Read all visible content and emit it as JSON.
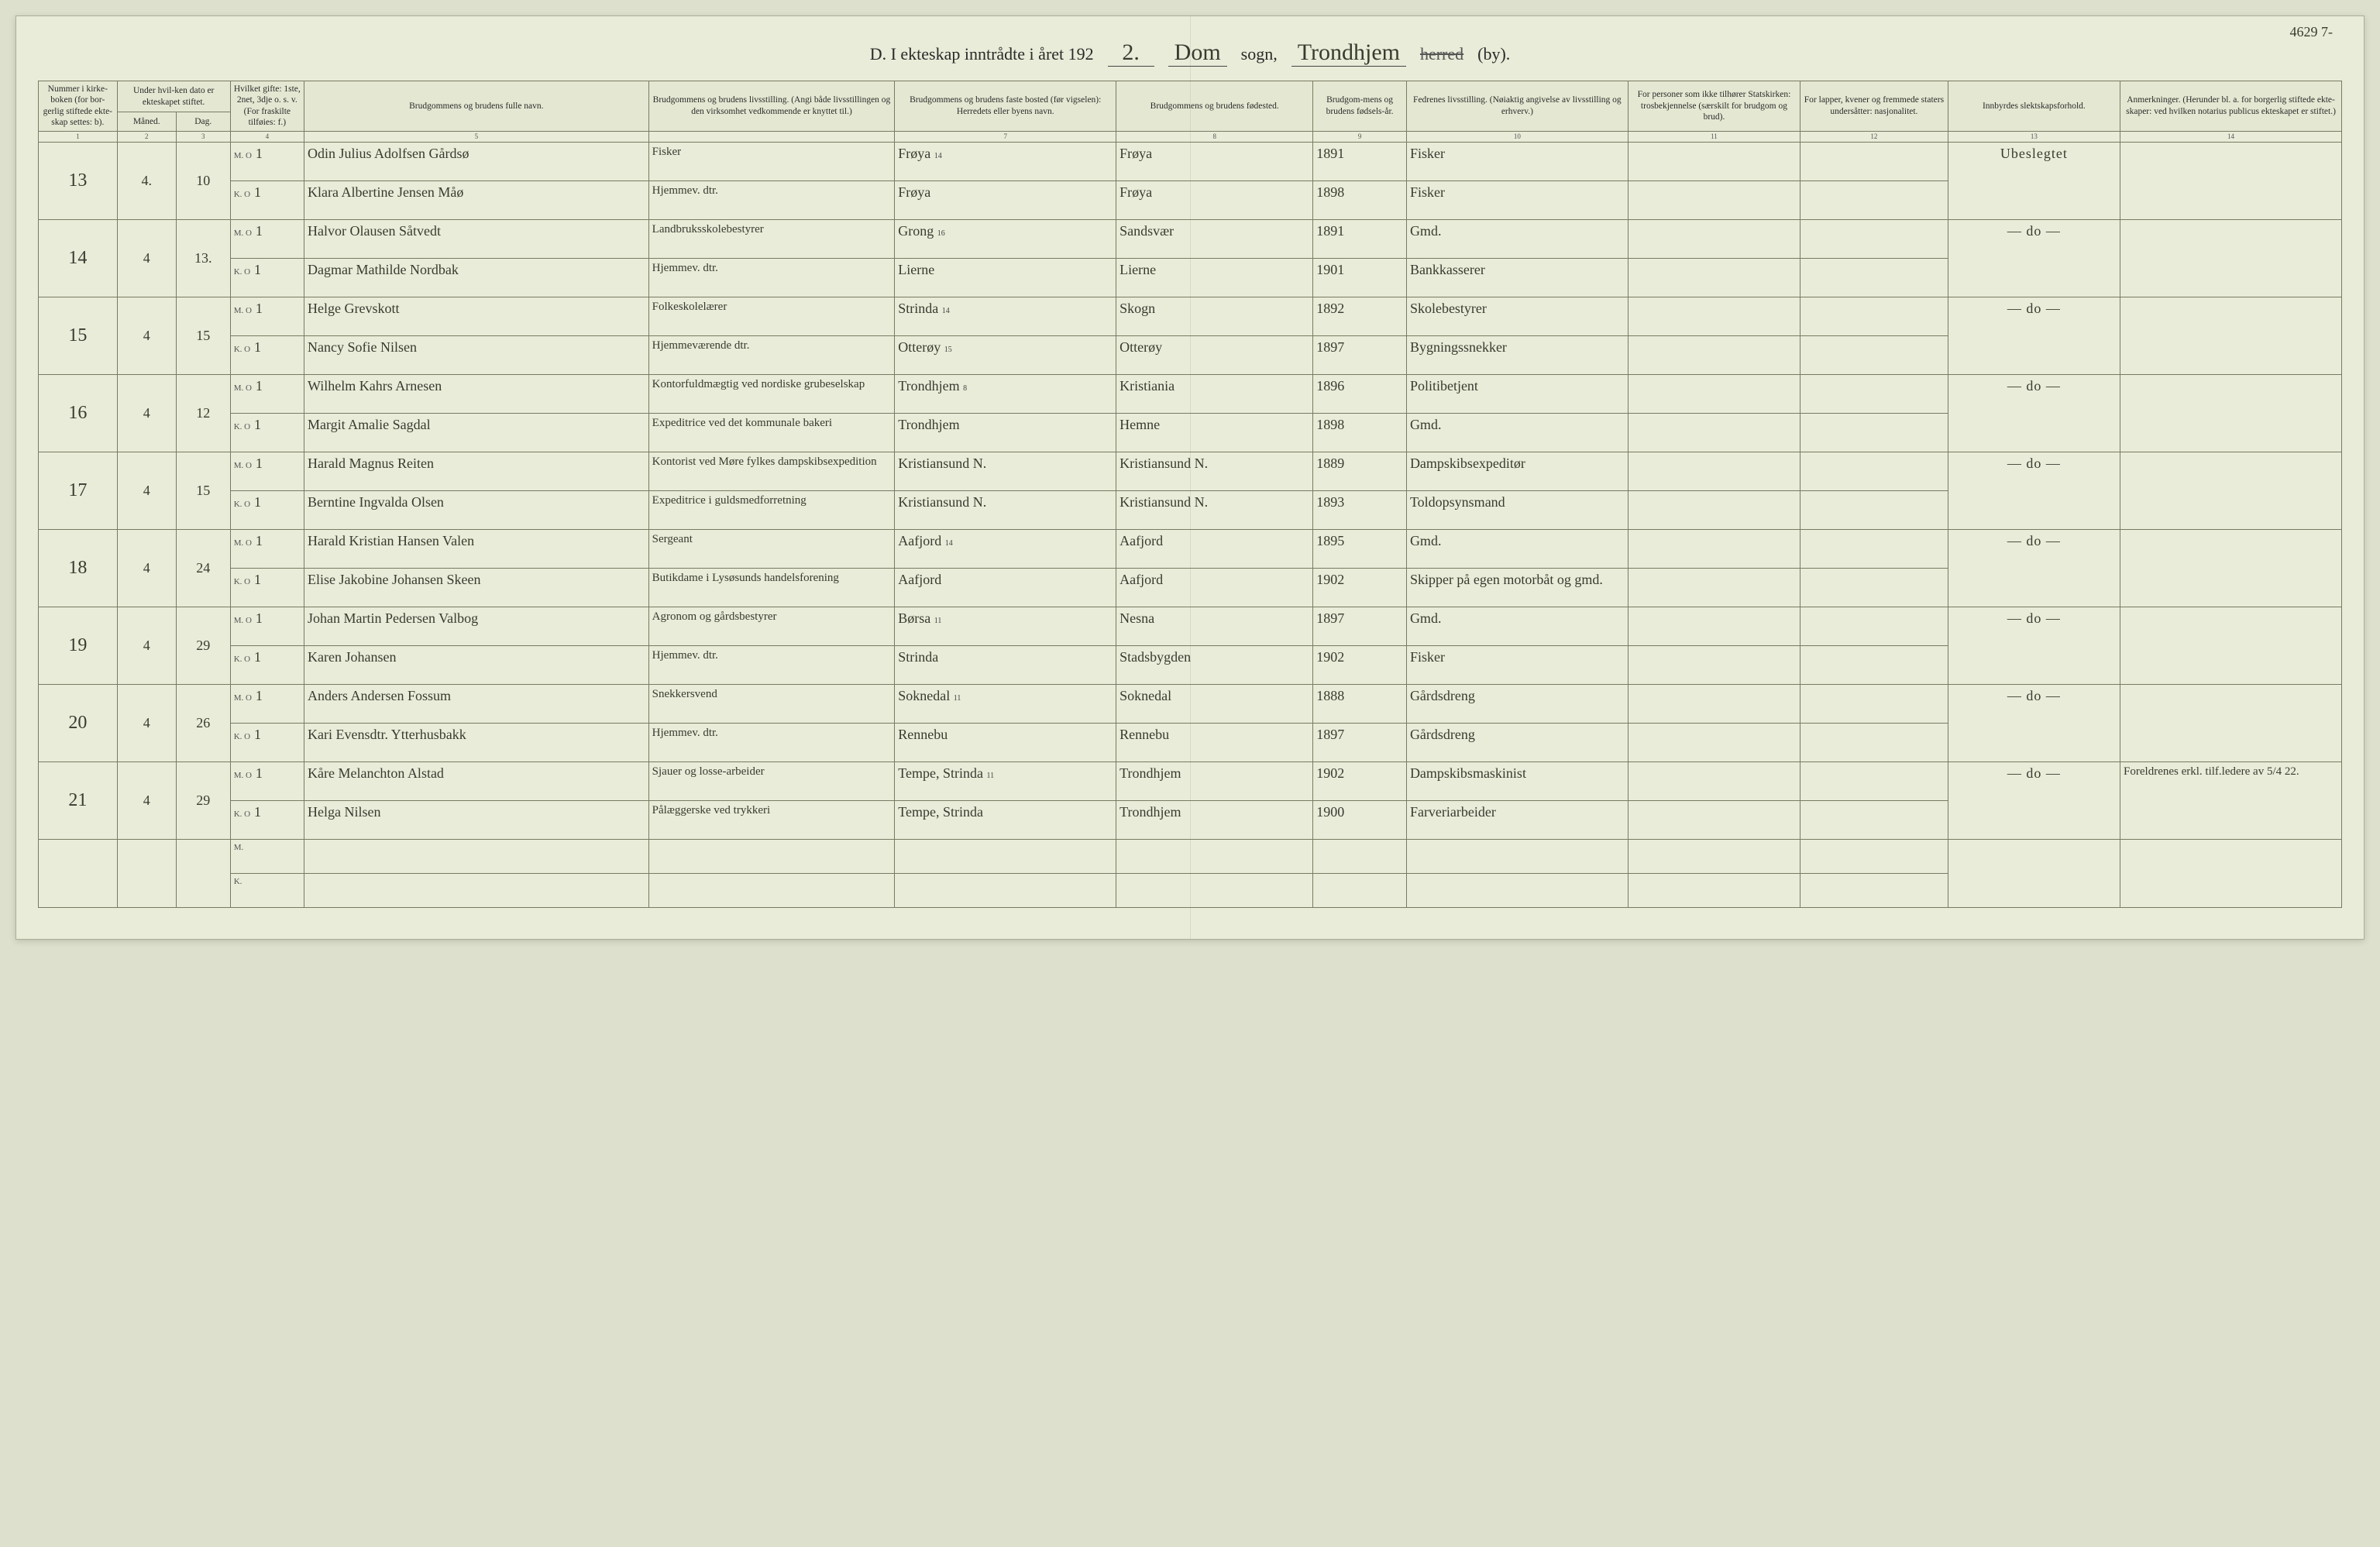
{
  "colors": {
    "page_bg": "#e8ecd8",
    "body_bg": "#dce0cc",
    "border": "#7a7a62",
    "ink": "#3a3a30"
  },
  "topright": "4629 7-",
  "header": {
    "prefix": "D.   I ekteskap inntrådte i året 192",
    "year_suffix": "2.",
    "sogn_value": "Dom",
    "sogn_label": "sogn,",
    "herred_value": "Trondhjem",
    "herred_struck": "herred",
    "by_label": "(by)."
  },
  "columns": {
    "c1": "Nummer i kirke-boken (for bor-gerlig stiftede ekte-skap settes: b).",
    "c2_group": "Under hvil-ken dato er ekteskapet stiftet.",
    "c2a": "Måned.",
    "c2b": "Dag.",
    "c3": "Hvilket gifte: 1ste, 2net, 3dje o. s. v. (For fraskilte tilføies: f.)",
    "c4": "Brudgommens og brudens fulle navn.",
    "c5": "Brudgommens og brudens livsstilling. (Angi både livsstillingen og den virksomhet vedkommende er knyttet til.)",
    "c6": "Brudgommens og brudens faste bosted (før vigselen): Herredets eller byens navn.",
    "c7": "Brudgommens og brudens fødested.",
    "c8": "Brudgom-mens og brudens fødsels-år.",
    "c9": "Fedrenes livsstilling. (Nøiaktig angivelse av livsstilling og erhverv.)",
    "c10": "For personer som ikke tilhører Statskirken: trosbekjennelse (særskilt for brudgom og brud).",
    "c11": "For lapper, kvener og fremmede staters undersåtter: nasjonalitet.",
    "c12": "Innbyrdes slektskapsforhold.",
    "c13": "Anmerkninger. (Herunder bl. a. for borgerlig stiftede ekte-skaper: ved hvilken notarius publicus ekteskapet er stiftet.)"
  },
  "colnums": [
    "1",
    "2",
    "3",
    "4",
    "5",
    "",
    "7",
    "8",
    "9",
    "10",
    "11",
    "12",
    "13",
    "14"
  ],
  "rows": [
    {
      "num": "13",
      "maaned": "4.",
      "dag": "10",
      "m": {
        "gifte": "1",
        "navn": "Odin Julius Adolfsen Gårdsø",
        "stilling": "Fisker",
        "bosted": "Frøya",
        "note": "14",
        "fodested": "Frøya",
        "aar": "1891",
        "fedre": "Fisker"
      },
      "k": {
        "gifte": "1",
        "navn": "Klara Albertine Jensen Måø",
        "stilling": "Hjemmev. dtr.",
        "bosted": "Frøya",
        "fodested": "Frøya",
        "aar": "1898",
        "fedre": "Fisker"
      },
      "slekt": "Ubeslegtet",
      "anm": ""
    },
    {
      "num": "14",
      "maaned": "4",
      "dag": "13.",
      "m": {
        "gifte": "1",
        "navn": "Halvor Olausen Såtvedt",
        "stilling": "Landbruksskolebestyrer",
        "bosted": "Grong",
        "note": "16",
        "fodested": "Sandsvær",
        "aar": "1891",
        "fedre": "Gmd."
      },
      "k": {
        "gifte": "1",
        "navn": "Dagmar Mathilde Nordbak",
        "stilling": "Hjemmev. dtr.",
        "bosted": "Lierne",
        "fodested": "Lierne",
        "aar": "1901",
        "fedre": "Bankkasserer"
      },
      "slekt": "— do —",
      "anm": ""
    },
    {
      "num": "15",
      "maaned": "4",
      "dag": "15",
      "m": {
        "gifte": "1",
        "navn": "Helge Grevskott",
        "stilling": "Folkeskolelærer",
        "bosted": "Strinda",
        "note": "14",
        "fodested": "Skogn",
        "aar": "1892",
        "fedre": "Skolebestyrer"
      },
      "k": {
        "gifte": "1",
        "navn": "Nancy Sofie Nilsen",
        "stilling": "Hjemmeværende dtr.",
        "bosted": "Otterøy",
        "note2": "15",
        "fodested": "Otterøy",
        "aar": "1897",
        "fedre": "Bygningssnekker"
      },
      "slekt": "— do —",
      "anm": ""
    },
    {
      "num": "16",
      "maaned": "4",
      "dag": "12",
      "m": {
        "gifte": "1",
        "navn": "Wilhelm Kahrs Arnesen",
        "stilling": "Kontorfuldmægtig ved nordiske grubeselskap",
        "bosted": "Trondhjem",
        "note": "8",
        "fodested": "Kristiania",
        "aar": "1896",
        "fedre": "Politibetjent"
      },
      "k": {
        "gifte": "1",
        "navn": "Margit Amalie Sagdal",
        "stilling": "Expeditrice ved det kommunale bakeri",
        "bosted": "Trondhjem",
        "fodested": "Hemne",
        "aar": "1898",
        "fedre": "Gmd."
      },
      "slekt": "— do —",
      "anm": ""
    },
    {
      "num": "17",
      "maaned": "4",
      "dag": "15",
      "m": {
        "gifte": "1",
        "navn": "Harald Magnus Reiten",
        "stilling": "Kontorist ved Møre fylkes dampskibsexpedition",
        "bosted": "Kristiansund N.",
        "fodested": "Kristiansund N.",
        "aar": "1889",
        "fedre": "Dampskibsexpeditør"
      },
      "k": {
        "gifte": "1",
        "navn": "Berntine Ingvalda Olsen",
        "stilling": "Expeditrice i guldsmedforretning",
        "bosted": "Kristiansund N.",
        "fodested": "Kristiansund N.",
        "aar": "1893",
        "fedre": "Toldopsynsmand"
      },
      "slekt": "— do —",
      "anm": ""
    },
    {
      "num": "18",
      "maaned": "4",
      "dag": "24",
      "m": {
        "gifte": "1",
        "navn": "Harald Kristian Hansen Valen",
        "stilling": "Sergeant",
        "bosted": "Aafjord",
        "note": "14",
        "fodested": "Aafjord",
        "aar": "1895",
        "fedre": "Gmd."
      },
      "k": {
        "gifte": "1",
        "navn": "Elise Jakobine Johansen Skeen",
        "stilling": "Butikdame i Lysøsunds handelsforening",
        "bosted": "Aafjord",
        "fodested": "Aafjord",
        "aar": "1902",
        "fedre": "Skipper på egen motorbåt og gmd."
      },
      "slekt": "— do —",
      "anm": ""
    },
    {
      "num": "19",
      "maaned": "4",
      "dag": "29",
      "m": {
        "gifte": "1",
        "navn": "Johan Martin Pedersen Valbog",
        "stilling": "Agronom og gårdsbestyrer",
        "bosted": "Børsa",
        "note": "11",
        "fodested": "Nesna",
        "aar": "1897",
        "fedre": "Gmd."
      },
      "k": {
        "gifte": "1",
        "navn": "Karen Johansen",
        "stilling": "Hjemmev. dtr.",
        "bosted": "Strinda",
        "fodested": "Stadsbygden",
        "aar": "1902",
        "fedre": "Fisker"
      },
      "slekt": "— do —",
      "anm": ""
    },
    {
      "num": "20",
      "maaned": "4",
      "dag": "26",
      "m": {
        "gifte": "1",
        "navn": "Anders Andersen Fossum",
        "stilling": "Snekkersvend",
        "bosted": "Soknedal",
        "note": "11",
        "fodested": "Soknedal",
        "aar": "1888",
        "fedre": "Gårdsdreng"
      },
      "k": {
        "gifte": "1",
        "navn": "Kari Evensdtr. Ytterhusbakk",
        "stilling": "Hjemmev. dtr.",
        "bosted": "Rennebu",
        "fodested": "Rennebu",
        "aar": "1897",
        "fedre": "Gårdsdreng"
      },
      "slekt": "— do —",
      "anm": ""
    },
    {
      "num": "21",
      "maaned": "4",
      "dag": "29",
      "m": {
        "gifte": "1",
        "navn": "Kåre Melanchton Alstad",
        "stilling": "Sjauer og losse-arbeider",
        "bosted": "Tempe, Strinda",
        "note": "11",
        "fodested": "Trondhjem",
        "aar": "1902",
        "fedre": "Dampskibsmaskinist"
      },
      "k": {
        "gifte": "1",
        "navn": "Helga Nilsen",
        "stilling": "Pålæggerske ved trykkeri",
        "bosted": "Tempe, Strinda",
        "fodested": "Trondhjem",
        "aar": "1900",
        "fedre": "Farveriarbeider"
      },
      "slekt": "— do —",
      "anm": "Foreldrenes erkl. tilf.ledere av 5/4 22."
    }
  ],
  "mk_labels": {
    "m": "M.",
    "k": "K.",
    "mo": "M. O",
    "ko": "K. O",
    "mv": "M. √",
    "kv": "K. √",
    "md": "M. O"
  }
}
